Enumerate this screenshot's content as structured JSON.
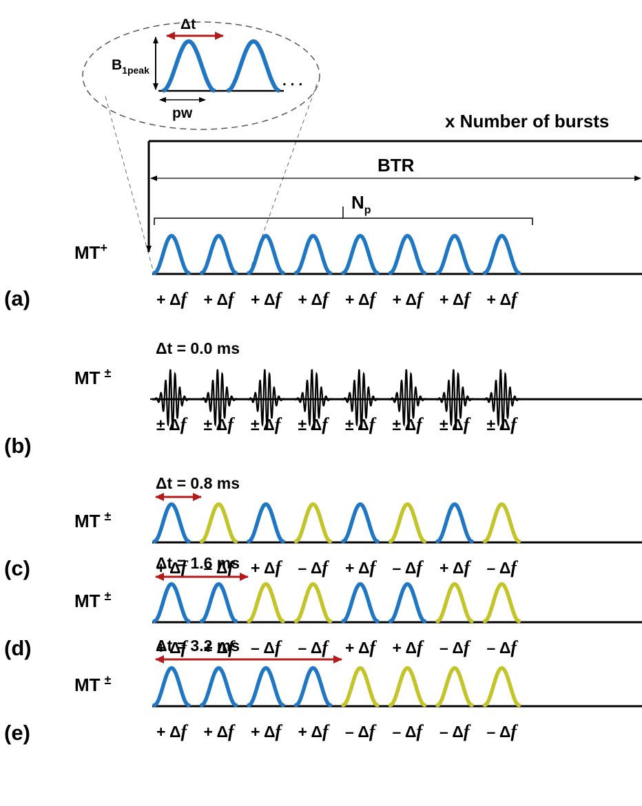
{
  "inset": {
    "dt_label": "Δt",
    "b1_label": "B",
    "b1_sub": "1peak",
    "pw_label": "pw",
    "ellipsis": ". . ."
  },
  "header": {
    "bursts_label": "x Number of bursts",
    "btr_label": "BTR",
    "np_label": "N",
    "np_sub": "p"
  },
  "colors": {
    "pos_pulse": "#1f77c4",
    "neg_pulse": "#c2c428",
    "arrow_red": "#b31b1b",
    "line": "#000000"
  },
  "pulse_count": 8,
  "rows": [
    {
      "panel": "(a)",
      "label": "MT",
      "label_sup": "+",
      "dt_label": "",
      "signs": [
        "+",
        "+",
        "+",
        "+",
        "+",
        "+",
        "+",
        "+"
      ],
      "kind": "pulse"
    },
    {
      "panel": "(b)",
      "label": "MT",
      "label_sup": "±",
      "dt_label": "Δt = 0.0 ms",
      "signs": [
        "±",
        "±",
        "±",
        "±",
        "±",
        "±",
        "±",
        "±"
      ],
      "kind": "oscillating"
    },
    {
      "panel": "(c)",
      "label": "MT",
      "label_sup": "±",
      "dt_label": "Δt = 0.8 ms",
      "signs": [
        "+",
        "–",
        "+",
        "–",
        "+",
        "–",
        "+",
        "–"
      ],
      "kind": "pulse"
    },
    {
      "panel": "(d)",
      "label": "MT",
      "label_sup": "±",
      "dt_label": "Δt = 1.6 ms",
      "signs": [
        "+",
        "+",
        "–",
        "–",
        "+",
        "+",
        "–",
        "–"
      ],
      "kind": "pulse"
    },
    {
      "panel": "(e)",
      "label": "MT",
      "label_sup": "±",
      "dt_label": "Δt = 3.2 ms",
      "signs": [
        "+",
        "+",
        "+",
        "+",
        "–",
        "–",
        "–",
        "–"
      ],
      "kind": "pulse"
    }
  ],
  "delta_symbol": "Δ",
  "f_symbol": "f"
}
